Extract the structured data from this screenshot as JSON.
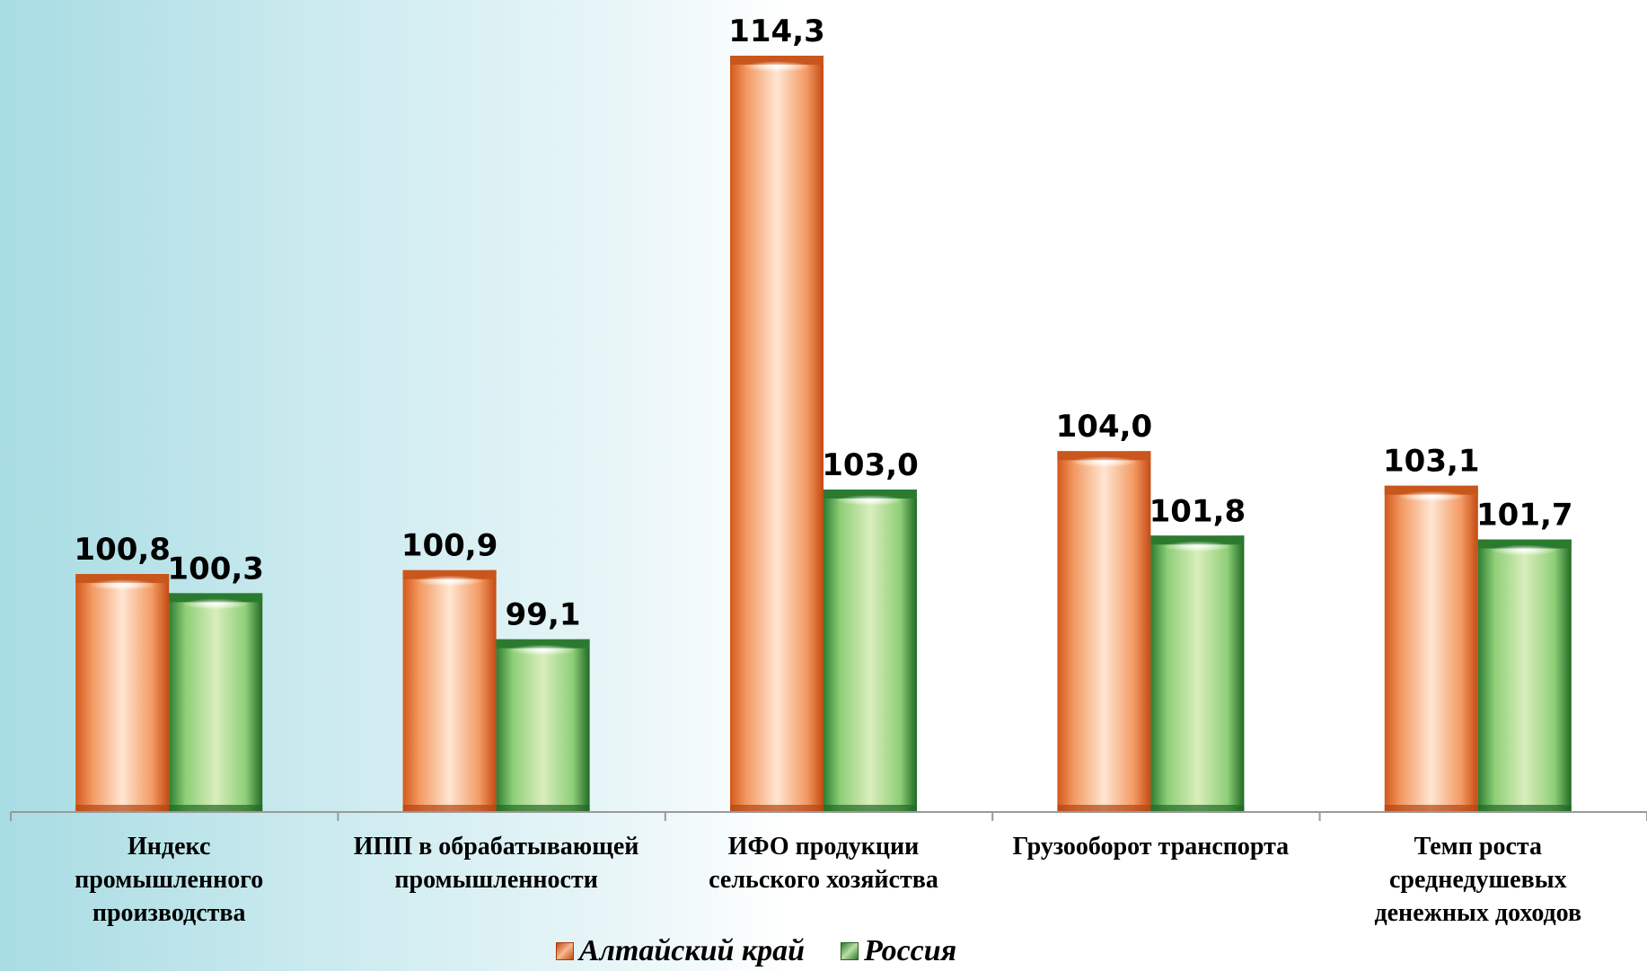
{
  "chart_data": {
    "type": "bar",
    "categories": [
      "Индекс\nпромышленного\nпроизводства",
      "ИПП в обрабатывающей\nпромышленности",
      "ИФО продукции\nсельского хозяйства",
      "Грузооборот транспорта",
      "Темп роста\nсреднедушевых\nденежных доходов"
    ],
    "series": [
      {
        "name": "Алтайский край",
        "values": [
          100.8,
          100.9,
          114.3,
          104.0,
          103.1
        ],
        "labels": [
          "100,8",
          "100,9",
          "114,3",
          "104,0",
          "103,1"
        ],
        "color": "#e8692a"
      },
      {
        "name": "Россия",
        "values": [
          100.3,
          99.1,
          103.0,
          101.8,
          101.7
        ],
        "labels": [
          "100,3",
          "99,1",
          "103,0",
          "101,8",
          "101,7"
        ],
        "color": "#5cb85c"
      }
    ],
    "ylim": [
      94.6,
      114.3
    ],
    "grid": false,
    "legend_position": "bottom"
  }
}
